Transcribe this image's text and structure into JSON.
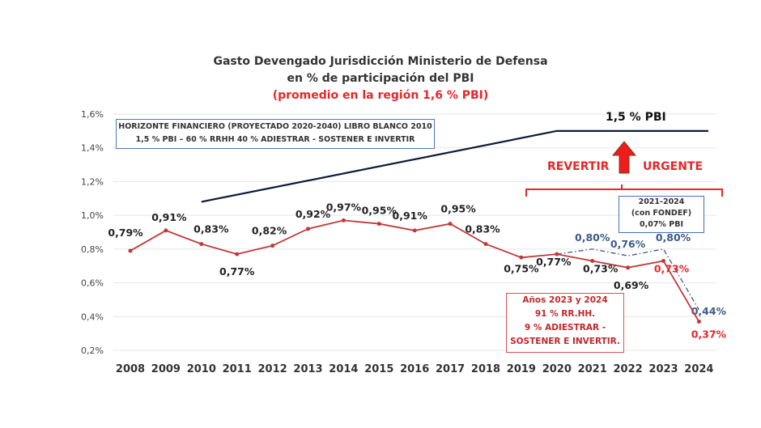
{
  "chart_data": {
    "type": "line",
    "title": "Gasto Devengado Jurisdicción Ministerio de Defensa",
    "subtitle": "en % de participación del PBI",
    "subtitle2": "(promedio en la región 1,6 % PBI)",
    "ylim": [
      0.2,
      1.6
    ],
    "yticks": [
      "0,2%",
      "0,4%",
      "0,6%",
      "0,8%",
      "1,0%",
      "1,2%",
      "1,4%",
      "1,6%"
    ],
    "grid": true,
    "categories": [
      "2008",
      "2009",
      "2010",
      "2011",
      "2012",
      "2013",
      "2014",
      "2015",
      "2016",
      "2017",
      "2018",
      "2019",
      "2020",
      "2021",
      "2022",
      "2023",
      "2024"
    ],
    "series": [
      {
        "values": [
          0.79,
          0.91,
          0.83,
          0.77,
          0.82,
          0.92,
          0.97,
          0.95,
          0.91,
          0.95,
          0.83,
          0.75,
          0.77,
          0.73,
          0.69,
          0.73,
          0.37
        ],
        "labels": [
          "0,79%",
          "0,91%",
          "0,83%",
          "0,77%",
          "0,82%",
          "0,92%",
          "0,97%",
          "0,95%",
          "0,91%",
          "0,95%",
          "0,83%",
          "0,75%",
          "0,77%",
          "0,73%",
          "0,69%",
          "0,73%",
          "0,37%"
        ],
        "color": "#c0393b",
        "style": "solid"
      },
      {
        "x": [
          "2020",
          "2021",
          "2022",
          "2023",
          "2024"
        ],
        "values": [
          0.77,
          0.8,
          0.76,
          0.8,
          0.44
        ],
        "labels": [
          "",
          "0,80%",
          "0,76%",
          "0,80%",
          "0,44%"
        ],
        "color": "#3d5a8a",
        "style": "dash-dot"
      },
      {
        "x": [
          "2010",
          "2020",
          "2024"
        ],
        "values": [
          1.08,
          1.5,
          1.5
        ],
        "color": "#0d1a3a",
        "style": "solid"
      }
    ],
    "annotations": {
      "horizon_box": [
        "HORIZONTE FINANCIERO (PROYECTADO 2020-2040) LIBRO BLANCO 2010",
        "1,5 % PBI – 60 % RRHH 40 % ADIESTRAR - SOSTENER E INVERTIR"
      ],
      "target_label": "1,5 % PBI",
      "revertir": "REVERTIR",
      "urgente": "URGENTE",
      "fondef_box": [
        "2021-2024",
        "(con FONDEF)",
        "0,07% PBI"
      ],
      "years_box": [
        "Años 2023 y 2024",
        "91 % RR.HH.",
        "9 % ADIESTRAR -",
        "SOSTENER E INVERTIR."
      ]
    },
    "colors": {
      "red": "#e8262a",
      "blue": "#3d5a8a",
      "navy": "#0d1a3a",
      "dark": "#222222"
    }
  }
}
